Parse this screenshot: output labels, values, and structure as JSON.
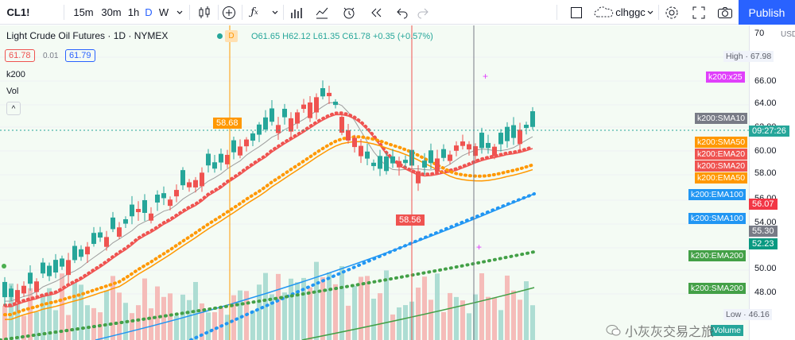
{
  "toolbar": {
    "symbol": "CL1!",
    "intervals": [
      "15m",
      "30m",
      "1h",
      "D",
      "W"
    ],
    "active_interval": "D",
    "user": "clhggc",
    "publish": "Publish",
    "icons": [
      "plus-circle-icon",
      "fx-icon",
      "bars-icon",
      "indicators-icon",
      "alert-icon",
      "replay-icon",
      "undo-icon",
      "redo-icon",
      "layout-icon",
      "cloud-icon",
      "gear-icon",
      "fullscreen-icon",
      "camera-icon"
    ]
  },
  "legend": {
    "title": "Light Crude Oil Futures · 1D · NYMEX",
    "badge": "D",
    "o": "O61.65",
    "h": "H62.12",
    "l": "L61.35",
    "c": "C61.78",
    "chg": "+0.35 (+0.57%)",
    "bid": "61.78",
    "spread": "0.01",
    "ask": "61.79",
    "line_k200": "k200",
    "line_vol": "Vol",
    "collapse": "^"
  },
  "price_axis": {
    "unit": "USD",
    "ticks": [
      "70",
      "66.00",
      "64.00",
      "62.00",
      "60.00",
      "58.00",
      "56.00",
      "54.00",
      "52.00",
      "50.00",
      "48.00"
    ],
    "high_label": "High",
    "high_value": "67.98",
    "low_label": "Low",
    "low_value": "46.16",
    "time_tag": "09:27:26",
    "tags": [
      {
        "text": "k200:x25",
        "color": "#e040fb"
      },
      {
        "text": "k200:SMA10",
        "color": "#787b86"
      },
      {
        "text": "k200:SMA50",
        "color": "#ff9800"
      },
      {
        "text": "k200:EMA20",
        "color": "#ef5350"
      },
      {
        "text": "k200:SMA20",
        "color": "#ef5350"
      },
      {
        "text": "k200:EMA50",
        "color": "#ff9800"
      },
      {
        "text": "k200:EMA100",
        "color": "#2196f3"
      },
      {
        "text": "k200:SMA100",
        "color": "#2196f3"
      },
      {
        "text": "k200:EMA200",
        "color": "#43a047"
      },
      {
        "text": "k200:SMA200",
        "color": "#43a047"
      },
      {
        "text": "Volume",
        "color": "#26a69a"
      }
    ],
    "price_tags": [
      {
        "text": "56.07",
        "color": "#f23645"
      },
      {
        "text": "55.30",
        "color": "#787b86"
      },
      {
        "text": "52.23",
        "color": "#089981"
      }
    ]
  },
  "markers": {
    "orange_label": "58.68",
    "red_label": "58.56"
  },
  "watermark": "小灰灰交易之旅",
  "colors": {
    "up": "#26a69a",
    "down": "#ef5350",
    "accent": "#2962ff",
    "sma10": "#9e9e9e",
    "ema20": "#ef5350",
    "sma20": "#ef5350",
    "ema50": "#ff9800",
    "sma50": "#ff9800",
    "ema100": "#2196f3",
    "sma100": "#2196f3",
    "ema200": "#43a047",
    "sma200": "#43a047",
    "bg_shade": "#e8f5e9"
  }
}
